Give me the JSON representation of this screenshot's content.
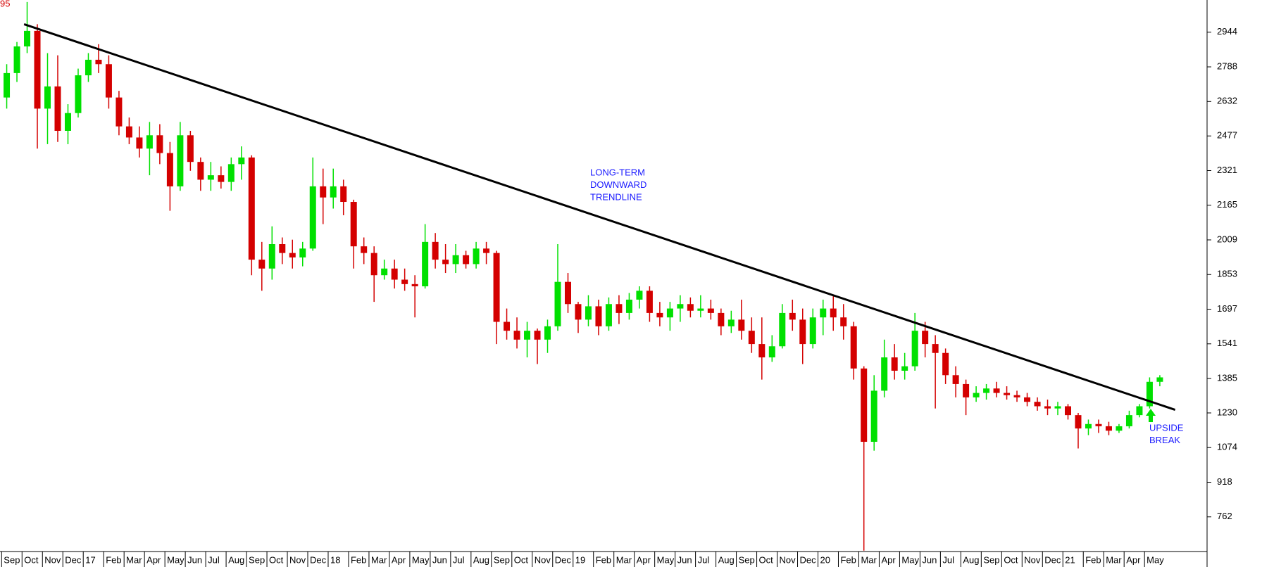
{
  "chart_data": {
    "type": "candlestick",
    "corner_label": "95",
    "categories": [
      "Sep",
      null,
      "Oct",
      null,
      "Nov",
      null,
      "Dec",
      null,
      "17",
      null,
      "Feb",
      null,
      "Mar",
      null,
      "Apr",
      null,
      "May",
      null,
      "Jun",
      null,
      "Jul",
      null,
      "Aug",
      null,
      "Sep",
      null,
      "Oct",
      null,
      "Nov",
      null,
      "Dec",
      null,
      "18",
      null,
      "Feb",
      null,
      "Mar",
      null,
      "Apr",
      null,
      "May",
      null,
      "Jun",
      null,
      "Jul",
      null,
      "Aug",
      null,
      "Sep",
      null,
      "Oct",
      null,
      "Nov",
      null,
      "Dec",
      null,
      "19",
      null,
      "Feb",
      null,
      "Mar",
      null,
      "Apr",
      null,
      "May",
      null,
      "Jun",
      null,
      "Jul",
      null,
      "Aug",
      null,
      "Sep",
      null,
      "Oct",
      null,
      "Nov",
      null,
      "Dec",
      null,
      "20",
      null,
      "Feb",
      null,
      "Mar",
      null,
      "Apr",
      null,
      "May",
      null,
      "Jun",
      null,
      "Jul",
      null,
      "Aug",
      null,
      "Sep",
      null,
      "Oct",
      null,
      "Nov",
      null,
      "Dec",
      null,
      "21",
      null,
      "Feb",
      null,
      "Mar",
      null,
      "Apr",
      null,
      "May",
      null
    ],
    "open": [
      2650,
      2760,
      2880,
      2950,
      2600,
      2700,
      2500,
      2580,
      2750,
      2820,
      2800,
      2650,
      2520,
      2470,
      2420,
      2480,
      2400,
      2250,
      2480,
      2360,
      2280,
      2300,
      2270,
      2350,
      2380,
      1920,
      1880,
      1990,
      1950,
      1930,
      1970,
      2250,
      2200,
      2250,
      2180,
      1980,
      1950,
      1850,
      1880,
      1830,
      1810,
      1800,
      2000,
      1920,
      1900,
      1940,
      1900,
      1970,
      1950,
      1640,
      1600,
      1560,
      1600,
      1560,
      1620,
      1820,
      1720,
      1650,
      1710,
      1620,
      1720,
      1680,
      1740,
      1780,
      1680,
      1660,
      1700,
      1720,
      1690,
      1700,
      1680,
      1620,
      1650,
      1600,
      1540,
      1480,
      1530,
      1680,
      1650,
      1540,
      1660,
      1700,
      1660,
      1620,
      1430,
      1100,
      1330,
      1480,
      1420,
      1440,
      1600,
      1540,
      1500,
      1400,
      1360,
      1300,
      1320,
      1340,
      1320,
      1310,
      1300,
      1280,
      1260,
      1250,
      1260,
      1220,
      1160,
      1180,
      1170,
      1150,
      1170,
      1220,
      1260,
      1370
    ],
    "high": [
      2800,
      2900,
      3080,
      2980,
      2850,
      2840,
      2620,
      2780,
      2850,
      2890,
      2840,
      2680,
      2560,
      2520,
      2540,
      2530,
      2450,
      2540,
      2500,
      2380,
      2360,
      2340,
      2380,
      2430,
      2390,
      2000,
      2070,
      2020,
      2010,
      2000,
      2380,
      2330,
      2330,
      2280,
      2190,
      2020,
      1980,
      1920,
      1920,
      1880,
      1850,
      2080,
      2040,
      1990,
      1990,
      1960,
      2000,
      2000,
      1960,
      1700,
      1660,
      1640,
      1610,
      1650,
      1990,
      1860,
      1730,
      1760,
      1740,
      1750,
      1760,
      1770,
      1800,
      1800,
      1730,
      1730,
      1760,
      1750,
      1760,
      1740,
      1700,
      1690,
      1740,
      1660,
      1660,
      1580,
      1720,
      1740,
      1700,
      1700,
      1740,
      1760,
      1720,
      1640,
      1440,
      1400,
      1560,
      1540,
      1500,
      1680,
      1640,
      1580,
      1520,
      1440,
      1380,
      1350,
      1360,
      1370,
      1350,
      1330,
      1320,
      1300,
      1290,
      1280,
      1270,
      1230,
      1200,
      1200,
      1190,
      1180,
      1240,
      1270,
      1390,
      1400
    ],
    "low": [
      2600,
      2720,
      2850,
      2420,
      2440,
      2450,
      2440,
      2560,
      2720,
      2760,
      2600,
      2480,
      2440,
      2380,
      2300,
      2350,
      2140,
      2230,
      2320,
      2230,
      2230,
      2240,
      2230,
      2280,
      1850,
      1780,
      1830,
      1900,
      1880,
      1890,
      1960,
      2080,
      2150,
      2120,
      1880,
      1900,
      1730,
      1830,
      1790,
      1780,
      1660,
      1790,
      1880,
      1860,
      1860,
      1880,
      1880,
      1900,
      1540,
      1560,
      1520,
      1480,
      1450,
      1500,
      1600,
      1680,
      1590,
      1620,
      1580,
      1600,
      1630,
      1650,
      1700,
      1640,
      1620,
      1600,
      1640,
      1660,
      1660,
      1650,
      1580,
      1590,
      1560,
      1500,
      1380,
      1460,
      1520,
      1600,
      1450,
      1520,
      1580,
      1600,
      1560,
      1380,
      610,
      1060,
      1300,
      1380,
      1380,
      1420,
      1480,
      1250,
      1360,
      1300,
      1220,
      1280,
      1290,
      1300,
      1290,
      1280,
      1260,
      1240,
      1220,
      1220,
      1200,
      1070,
      1130,
      1140,
      1130,
      1140,
      1160,
      1210,
      1250,
      1350
    ],
    "close": [
      2760,
      2880,
      2950,
      2600,
      2700,
      2500,
      2580,
      2750,
      2820,
      2800,
      2650,
      2520,
      2470,
      2420,
      2480,
      2400,
      2250,
      2480,
      2360,
      2280,
      2300,
      2270,
      2350,
      2380,
      1920,
      1880,
      1990,
      1950,
      1930,
      1970,
      2250,
      2200,
      2250,
      2180,
      1980,
      1950,
      1850,
      1880,
      1830,
      1810,
      1800,
      2000,
      1920,
      1900,
      1940,
      1900,
      1970,
      1950,
      1640,
      1600,
      1560,
      1600,
      1560,
      1620,
      1820,
      1720,
      1650,
      1710,
      1620,
      1720,
      1680,
      1740,
      1780,
      1680,
      1660,
      1700,
      1720,
      1690,
      1700,
      1680,
      1620,
      1650,
      1600,
      1540,
      1480,
      1530,
      1680,
      1650,
      1540,
      1660,
      1700,
      1660,
      1620,
      1430,
      1100,
      1330,
      1480,
      1420,
      1440,
      1600,
      1540,
      1500,
      1400,
      1360,
      1300,
      1320,
      1340,
      1320,
      1310,
      1300,
      1280,
      1260,
      1250,
      1260,
      1220,
      1160,
      1180,
      1170,
      1150,
      1170,
      1220,
      1260,
      1370,
      1390
    ],
    "up_color": "#00e000",
    "down_color": "#d40000",
    "ylim": [
      606,
      3089
    ],
    "yticks": [
      762,
      918,
      1074,
      1230,
      1385,
      1541,
      1697,
      1853,
      2009,
      2165,
      2321,
      2477,
      2632,
      2788,
      2944
    ],
    "trendline": {
      "values": [
        2980,
        1244
      ],
      "color": "#000000"
    },
    "annotations": [
      {
        "lines": [
          "LONG-TERM",
          "DOWNWARD",
          "TRENDLINE"
        ],
        "color": "#1a1aff"
      },
      {
        "lines": [
          "UPSIDE",
          "BREAK"
        ],
        "color": "#1a1aff"
      }
    ]
  }
}
